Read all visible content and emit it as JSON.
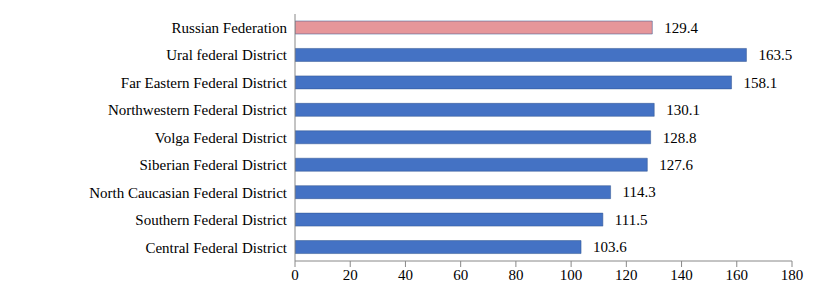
{
  "chart_data": {
    "type": "bar",
    "orientation": "horizontal",
    "categories": [
      "Russian Federation",
      "Ural federal District",
      "Far Eastern Federal District",
      "Northwestern Federal District",
      "Volga Federal District",
      "Siberian Federal District",
      "North Caucasian Federal District",
      "Southern Federal District",
      "Central Federal District"
    ],
    "values": [
      129.4,
      163.5,
      158.1,
      130.1,
      128.8,
      127.6,
      114.3,
      111.5,
      103.6
    ],
    "colors": [
      "#e6969a",
      "#4472c4",
      "#4472c4",
      "#4472c4",
      "#4472c4",
      "#4472c4",
      "#4472c4",
      "#4472c4",
      "#4472c4"
    ],
    "xlim": [
      0,
      180
    ],
    "xticks": [
      0,
      20,
      40,
      60,
      80,
      100,
      120,
      140,
      160,
      180
    ],
    "grid": false,
    "data_labels": true
  }
}
